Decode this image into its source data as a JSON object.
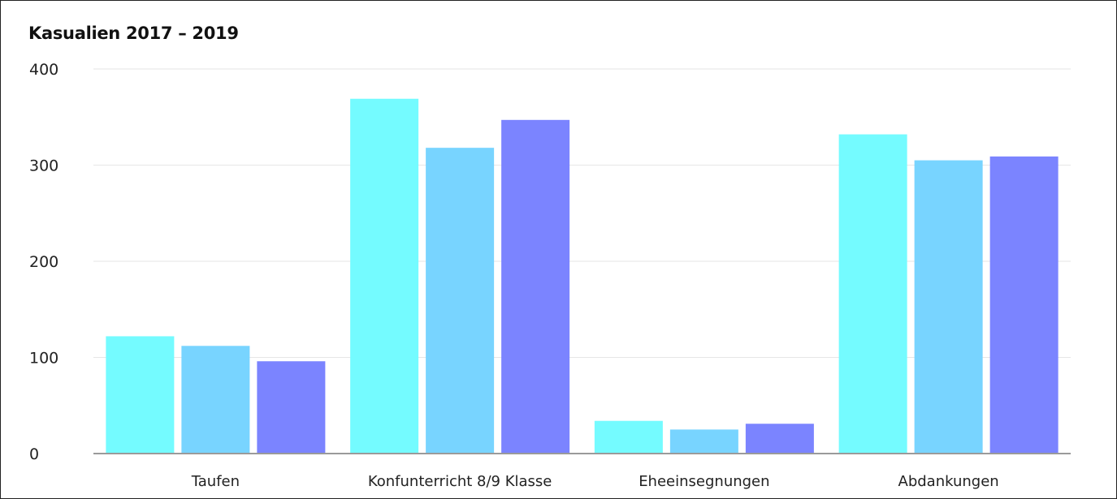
{
  "chart_data": {
    "type": "bar",
    "title": "Kasualien 2017 – 2019",
    "categories": [
      "Taufen",
      "Konfunterricht 8/9 Klasse",
      "Eheeinsegnungen",
      "Abdankungen"
    ],
    "series": [
      {
        "values": [
          122,
          369,
          34,
          332
        ],
        "color": "#74FBFF"
      },
      {
        "values": [
          112,
          318,
          25,
          305
        ],
        "color": "#78D4FF"
      },
      {
        "values": [
          96,
          347,
          31,
          309
        ],
        "color": "#7B84FF"
      }
    ],
    "ylim": [
      0,
      400
    ],
    "yticks": [
      0,
      100,
      200,
      300,
      400
    ],
    "grid": true,
    "legend": false
  }
}
